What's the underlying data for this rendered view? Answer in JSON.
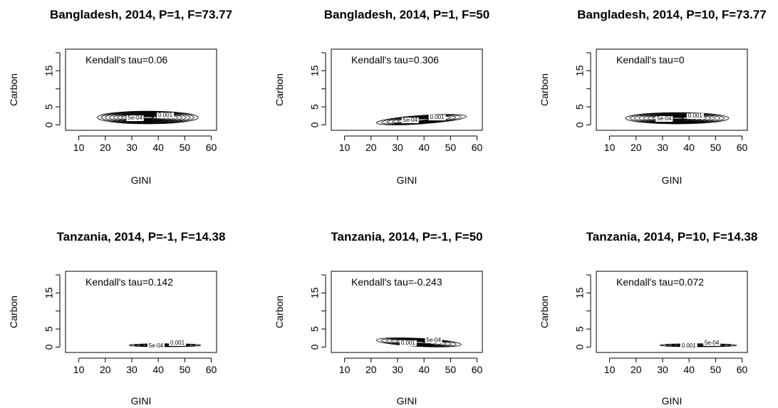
{
  "chart_data": [
    {
      "type": "contour",
      "title": "Bangladesh, 2014, P=1, F=73.77",
      "xlabel": "GINI",
      "ylabel": "Carbon",
      "xlim": [
        5,
        62
      ],
      "ylim": [
        -1.5,
        21
      ],
      "xticks": [
        "10",
        "20",
        "30",
        "40",
        "50",
        "60"
      ],
      "yticks": [
        "0",
        "5",
        "15"
      ],
      "annotation": "Kendall's tau=0.06",
      "contour_labels": [
        "5e-04",
        "0.001"
      ],
      "region": {
        "x_min": 17,
        "x_max": 55,
        "y_min": 0.3,
        "y_max": 3.8
      },
      "level_count": 12
    },
    {
      "type": "contour",
      "title": "Bangladesh, 2014, P=1, F=50",
      "xlabel": "GINI",
      "ylabel": "Carbon",
      "xlim": [
        5,
        62
      ],
      "ylim": [
        -1.5,
        21
      ],
      "xticks": [
        "10",
        "20",
        "30",
        "40",
        "50",
        "60"
      ],
      "yticks": [
        "0",
        "5",
        "15"
      ],
      "annotation": "Kendall's tau=0.306",
      "contour_labels": [
        "5e-04",
        "0.001"
      ],
      "region": {
        "x_min": 22,
        "x_max": 56,
        "y_min": 0.3,
        "y_max": 2.6
      },
      "level_count": 8
    },
    {
      "type": "contour",
      "title": "Bangladesh, 2014, P=10, F=73.77",
      "xlabel": "GINI",
      "ylabel": "Carbon",
      "xlim": [
        5,
        62
      ],
      "ylim": [
        -1.5,
        21
      ],
      "xticks": [
        "10",
        "20",
        "30",
        "40",
        "50",
        "60"
      ],
      "yticks": [
        "0",
        "5",
        "15"
      ],
      "annotation": "Kendall's tau=0",
      "contour_labels": [
        "5e-04",
        "0.001"
      ],
      "region": {
        "x_min": 16,
        "x_max": 55,
        "y_min": 0.3,
        "y_max": 3.4
      },
      "level_count": 11
    },
    {
      "type": "contour",
      "title": "Tanzania, 2014, P=-1, F=14.38",
      "xlabel": "GINI",
      "ylabel": "Carbon",
      "xlim": [
        5,
        62
      ],
      "ylim": [
        -1.5,
        21
      ],
      "xticks": [
        "10",
        "20",
        "30",
        "40",
        "50",
        "60"
      ],
      "yticks": [
        "0",
        "5",
        "15"
      ],
      "annotation": "Kendall's tau=0.142",
      "contour_labels": [
        "5e-04",
        "0.001"
      ],
      "region": {
        "x_min": 29,
        "x_max": 56,
        "y_min": 0.1,
        "y_max": 0.9
      },
      "level_count": 6
    },
    {
      "type": "contour",
      "title": "Tanzania, 2014, P=-1, F=50",
      "xlabel": "GINI",
      "ylabel": "Carbon",
      "xlim": [
        5,
        62
      ],
      "ylim": [
        -1.5,
        21
      ],
      "xticks": [
        "10",
        "20",
        "30",
        "40",
        "50",
        "60"
      ],
      "yticks": [
        "0",
        "5",
        "15"
      ],
      "annotation": "Kendall's tau=-0.243",
      "contour_labels": [
        "0.001",
        "5e-04"
      ],
      "region": {
        "x_min": 22,
        "x_max": 54,
        "y_min": 0.2,
        "y_max": 2.4
      },
      "level_count": 8
    },
    {
      "type": "contour",
      "title": "Tanzania, 2014, P=10, F=14.38",
      "xlabel": "GINI",
      "ylabel": "Carbon",
      "xlim": [
        5,
        62
      ],
      "ylim": [
        -1.5,
        21
      ],
      "xticks": [
        "10",
        "20",
        "30",
        "40",
        "50",
        "60"
      ],
      "yticks": [
        "0",
        "5",
        "15"
      ],
      "annotation": "Kendall's tau=0.072",
      "contour_labels": [
        "0.001",
        "5e-04"
      ],
      "region": {
        "x_min": 29,
        "x_max": 58,
        "y_min": 0.1,
        "y_max": 0.9
      },
      "level_count": 6
    }
  ]
}
